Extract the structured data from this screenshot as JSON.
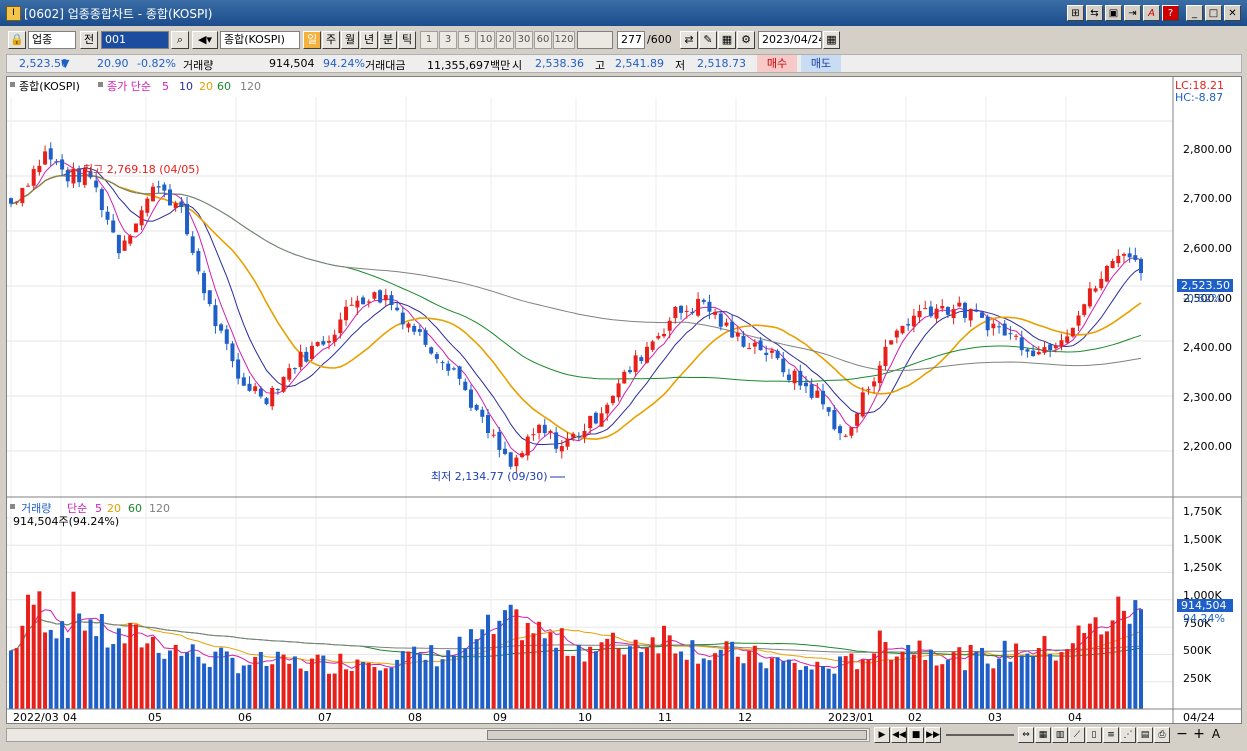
{
  "window": {
    "title": "[0602] 업종종합차트 - 종합(KOSPI)",
    "icon_letter": "I"
  },
  "title_buttons": [
    "⊞",
    "⇆",
    "▣",
    "⇥",
    "A",
    "?",
    "_",
    "□",
    "✕"
  ],
  "toolbar": {
    "market": "업종",
    "prev_label": "전",
    "code": "001",
    "name": "종합(KOSPI)",
    "periods": [
      "일",
      "주",
      "월",
      "년",
      "분",
      "틱"
    ],
    "active_period": "일",
    "minute_options": [
      "1",
      "3",
      "5",
      "10",
      "20",
      "30",
      "60",
      "120"
    ],
    "count": "277",
    "count_total": "/600",
    "date": "2023/04/24"
  },
  "info": {
    "price": "2,523.50",
    "arrow": "▼",
    "change": "20.90",
    "change_pct": "-0.82%",
    "volume_label": "거래량",
    "volume": "914,504",
    "volume_pct": "94.24%",
    "amount_label": "거래대금",
    "amount": "11,355,697백만",
    "open_label": "시",
    "open": "2,538.36",
    "high_label": "고",
    "high": "2,541.89",
    "low_label": "저",
    "low": "2,518.73",
    "buy_label": "매수",
    "sell_label": "매도"
  },
  "price_panel": {
    "name": "종합(KOSPI)",
    "ma_label": "종가 단순",
    "ma_periods": [
      "5",
      "10",
      "20",
      "60",
      "120"
    ],
    "lc": "LC:18.21",
    "hc": "HC:-8.87",
    "high_note": "최고 2,769.18 (04/05)",
    "low_note": "최저 2,134.77 (09/30)",
    "y_ticks": [
      "2,800.00",
      "2,700.00",
      "2,600.00",
      "2,500.00",
      "2,400.00",
      "2,300.00",
      "2,200.00"
    ],
    "current_price_tag": "2,523.50",
    "current_change_tag": "-0.82%"
  },
  "volume_panel": {
    "label": "거래량",
    "ma_label": "단순",
    "ma_periods": [
      "5",
      "20",
      "60",
      "120"
    ],
    "current_note": "914,504주(94.24%)",
    "y_ticks": [
      "1,750K",
      "1,500K",
      "1,250K",
      "1,000K",
      "750K",
      "500K",
      "250K"
    ],
    "current_tag": "914,504",
    "current_pct_tag": "94.24%"
  },
  "x_axis": {
    "labels": [
      "2022/03",
      "04",
      "05",
      "06",
      "07",
      "08",
      "09",
      "10",
      "11",
      "12",
      "2023/01",
      "02",
      "03",
      "04"
    ],
    "end_label": "04/24"
  },
  "colors": {
    "up": "#e8201b",
    "down": "#1f5fc8",
    "ma5": "#d020b0",
    "ma10": "#2c2c9c",
    "ma20": "#e8a000",
    "ma60": "#1a8a2a",
    "ma120": "#808080"
  },
  "chart_data": {
    "type": "candlestick",
    "x_range": [
      "2022/03",
      "2023/04/24"
    ],
    "price_ylim": [
      2120,
      2840
    ],
    "volume_ylim": [
      0,
      1850000
    ],
    "price_path": [
      [
        0,
        2650
      ],
      [
        6,
        2740
      ],
      [
        10,
        2700
      ],
      [
        14,
        2700
      ],
      [
        19,
        2570
      ],
      [
        26,
        2690
      ],
      [
        30,
        2630
      ],
      [
        35,
        2460
      ],
      [
        40,
        2330
      ],
      [
        45,
        2300
      ],
      [
        50,
        2360
      ],
      [
        56,
        2410
      ],
      [
        61,
        2480
      ],
      [
        66,
        2480
      ],
      [
        72,
        2410
      ],
      [
        78,
        2350
      ],
      [
        83,
        2250
      ],
      [
        88,
        2170
      ],
      [
        93,
        2240
      ],
      [
        97,
        2210
      ],
      [
        102,
        2250
      ],
      [
        107,
        2320
      ],
      [
        112,
        2390
      ],
      [
        117,
        2450
      ],
      [
        122,
        2470
      ],
      [
        127,
        2410
      ],
      [
        132,
        2390
      ],
      [
        137,
        2340
      ],
      [
        142,
        2300
      ],
      [
        147,
        2220
      ],
      [
        151,
        2320
      ],
      [
        156,
        2420
      ],
      [
        161,
        2460
      ],
      [
        166,
        2460
      ],
      [
        171,
        2440
      ],
      [
        176,
        2410
      ],
      [
        181,
        2380
      ],
      [
        186,
        2420
      ],
      [
        191,
        2500
      ],
      [
        196,
        2570
      ],
      [
        199,
        2523.5
      ]
    ],
    "volume_path": [
      [
        0,
        520000
      ],
      [
        4,
        1000000
      ],
      [
        8,
        780000
      ],
      [
        12,
        900000
      ],
      [
        17,
        650000
      ],
      [
        23,
        650000
      ],
      [
        28,
        560000
      ],
      [
        34,
        480000
      ],
      [
        40,
        430000
      ],
      [
        48,
        420000
      ],
      [
        56,
        420000
      ],
      [
        63,
        470000
      ],
      [
        71,
        470000
      ],
      [
        78,
        520000
      ],
      [
        84,
        700000
      ],
      [
        90,
        800000
      ],
      [
        96,
        600000
      ],
      [
        103,
        560000
      ],
      [
        109,
        600000
      ],
      [
        115,
        680000
      ],
      [
        122,
        520000
      ],
      [
        128,
        500000
      ],
      [
        134,
        440000
      ],
      [
        140,
        380000
      ],
      [
        147,
        400000
      ],
      [
        153,
        580000
      ],
      [
        160,
        580000
      ],
      [
        166,
        480000
      ],
      [
        172,
        460000
      ],
      [
        178,
        560000
      ],
      [
        184,
        540000
      ],
      [
        190,
        720000
      ],
      [
        196,
        900000
      ],
      [
        199,
        914504
      ]
    ]
  }
}
